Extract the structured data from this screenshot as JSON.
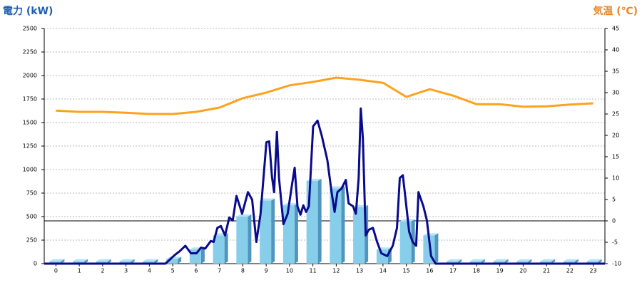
{
  "chart_data": {
    "type": "bar",
    "y_label": "電力 (kW)",
    "y2_label": "気温 (℃)",
    "y_label_color": "#1f5fb0",
    "y2_label_color": "#e8862a",
    "categories": [
      "0",
      "1",
      "2",
      "3",
      "4",
      "5",
      "6",
      "7",
      "8",
      "9",
      "10",
      "11",
      "12",
      "13",
      "14",
      "15",
      "16",
      "17",
      "18",
      "19",
      "20",
      "21",
      "22",
      "23"
    ],
    "ylim": [
      0,
      2500
    ],
    "yticks": [
      0,
      250,
      500,
      750,
      1000,
      1250,
      1500,
      1750,
      2000,
      2250,
      2500
    ],
    "y2lim": [
      -10,
      45
    ],
    "y2ticks": [
      -10,
      -5,
      0,
      5,
      10,
      15,
      20,
      25,
      30,
      35,
      40,
      45
    ],
    "grid": true,
    "series": [
      {
        "type": "bar",
        "color": "#87ceeb",
        "values": [
          25,
          25,
          25,
          25,
          25,
          50,
          150,
          300,
          500,
          670,
          620,
          880,
          800,
          600,
          150,
          450,
          300,
          25,
          25,
          25,
          25,
          25,
          25,
          25
        ]
      },
      {
        "type": "line",
        "color": "#ffa21f",
        "axis": "y2",
        "values": [
          25.8,
          25.5,
          25.5,
          25.3,
          25,
          25,
          25.5,
          26.5,
          28.7,
          30,
          31.7,
          32.5,
          33.5,
          33,
          32.3,
          29,
          30.8,
          29.3,
          27.3,
          27.3,
          26.7,
          26.8,
          27.2,
          27.5
        ]
      },
      {
        "type": "line",
        "color": "#0a0a8c",
        "x": [
          -0.5,
          4.69,
          5.08,
          5.29,
          5.54,
          5.78,
          6.02,
          6.21,
          6.39,
          6.63,
          6.75,
          6.91,
          7.06,
          7.24,
          7.42,
          7.57,
          7.73,
          7.97,
          8.22,
          8.4,
          8.58,
          8.76,
          9.01,
          9.13,
          9.25,
          9.34,
          9.46,
          9.55,
          9.74,
          9.92,
          10.1,
          10.22,
          10.34,
          10.47,
          10.59,
          10.71,
          10.83,
          11.01,
          11.2,
          11.38,
          11.62,
          11.8,
          11.93,
          12.05,
          12.23,
          12.41,
          12.53,
          12.72,
          12.84,
          12.96,
          13.05,
          13.14,
          13.26,
          13.39,
          13.57,
          13.75,
          13.93,
          14.18,
          14.42,
          14.6,
          14.72,
          14.85,
          14.97,
          15.12,
          15.27,
          15.42,
          15.52,
          15.73,
          15.88,
          16.06,
          16.25,
          23.5
        ],
        "values": [
          0,
          0,
          90,
          130,
          190,
          110,
          110,
          170,
          160,
          240,
          230,
          380,
          400,
          300,
          490,
          460,
          720,
          530,
          760,
          680,
          230,
          530,
          1290,
          1300,
          920,
          760,
          1400,
          910,
          420,
          530,
          830,
          1020,
          610,
          520,
          620,
          550,
          610,
          1460,
          1520,
          1360,
          1100,
          760,
          550,
          760,
          800,
          890,
          640,
          610,
          530,
          910,
          1650,
          1330,
          300,
          360,
          380,
          230,
          110,
          80,
          190,
          380,
          910,
          940,
          680,
          340,
          230,
          190,
          760,
          610,
          460,
          80,
          0,
          0
        ]
      }
    ]
  }
}
